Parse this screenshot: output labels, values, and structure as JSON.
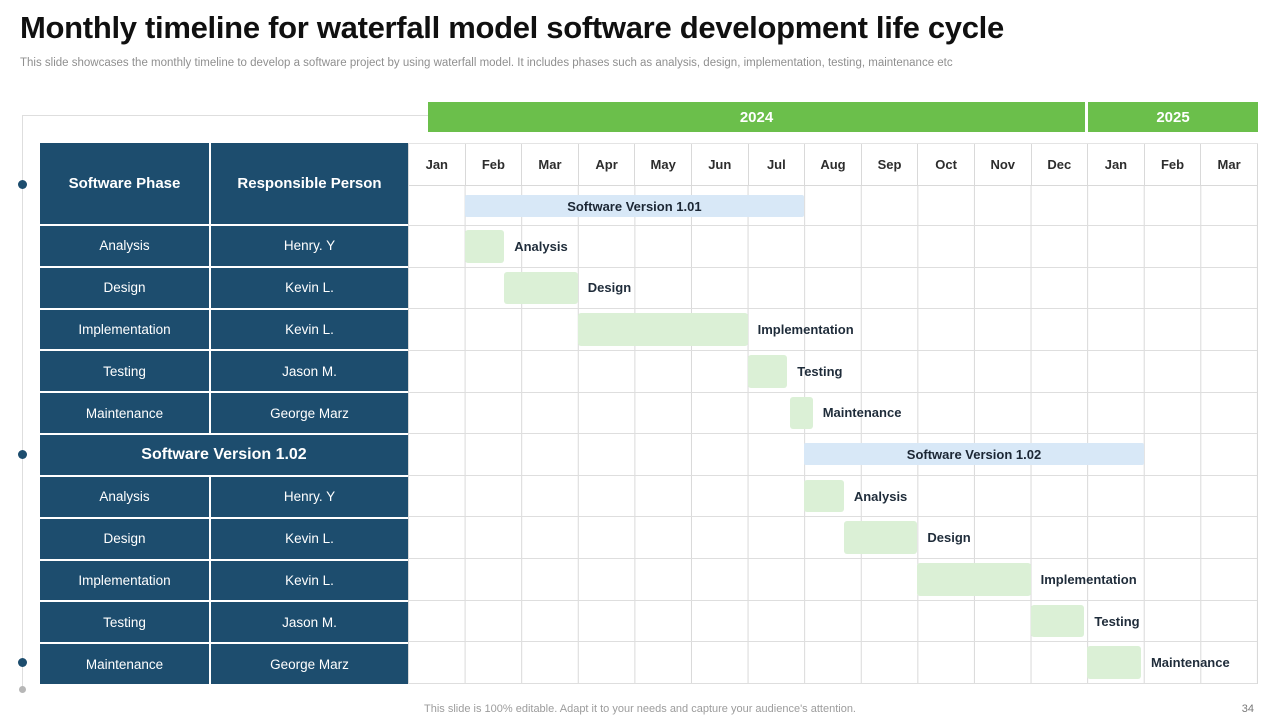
{
  "slide": {
    "title": "Monthly timeline for waterfall model software development life cycle",
    "subtitle": "This slide showcases the monthly timeline to develop a software project by using waterfall model. It includes phases such as analysis, design, implementation, testing, maintenance etc",
    "footer_note": "This slide is 100% editable. Adapt it to your needs and capture your audience's attention.",
    "page_number": "34"
  },
  "colors": {
    "table_blue": "#1d4d6e",
    "year_green": "#6bbf4b",
    "task_bar_green": "#dbf0d6",
    "version_bar_blue": "#d8e8f7",
    "grid_gray": "#d9d9d9"
  },
  "table": {
    "col_headers": [
      "Software Phase",
      "Responsible Person"
    ],
    "section2_header": "Software Version 1.02",
    "rows_v1": [
      {
        "phase": "Analysis",
        "person": "Henry. Y"
      },
      {
        "phase": "Design",
        "person": "Kevin L."
      },
      {
        "phase": "Implementation",
        "person": "Kevin L."
      },
      {
        "phase": "Testing",
        "person": "Jason M."
      },
      {
        "phase": "Maintenance",
        "person": "George Marz"
      }
    ],
    "rows_v2": [
      {
        "phase": "Analysis",
        "person": "Henry. Y"
      },
      {
        "phase": "Design",
        "person": "Kevin L."
      },
      {
        "phase": "Implementation",
        "person": "Kevin L."
      },
      {
        "phase": "Testing",
        "person": "Jason M."
      },
      {
        "phase": "Maintenance",
        "person": "George Marz"
      }
    ]
  },
  "chart_data": {
    "type": "gantt",
    "unit": "month",
    "columns_total": 15,
    "timeline": {
      "years": [
        {
          "label": "2024",
          "start": 0,
          "span": 12
        },
        {
          "label": "2025",
          "start": 12,
          "span": 3
        }
      ],
      "months": [
        "Jan",
        "Feb",
        "Mar",
        "Apr",
        "May",
        "Jun",
        "Jul",
        "Aug",
        "Sep",
        "Oct",
        "Nov",
        "Dec",
        "Jan",
        "Feb",
        "Mar"
      ]
    },
    "phases": [
      {
        "kind": "version",
        "label": "Software Version 1.01",
        "start": 1,
        "span": 6
      },
      {
        "kind": "task",
        "label": "Analysis",
        "start": 1,
        "span": 0.7
      },
      {
        "kind": "task",
        "label": "Design",
        "start": 1.7,
        "span": 1.3
      },
      {
        "kind": "task",
        "label": "Implementation",
        "start": 3,
        "span": 3
      },
      {
        "kind": "task",
        "label": "Testing",
        "start": 6,
        "span": 0.7
      },
      {
        "kind": "task",
        "label": "Maintenance",
        "start": 6.75,
        "span": 0.4
      },
      {
        "kind": "version",
        "label": "Software Version 1.02",
        "start": 7,
        "span": 6
      },
      {
        "kind": "task",
        "label": "Analysis",
        "start": 7,
        "span": 0.7
      },
      {
        "kind": "task",
        "label": "Design",
        "start": 7.7,
        "span": 1.3
      },
      {
        "kind": "task",
        "label": "Implementation",
        "start": 9,
        "span": 2
      },
      {
        "kind": "task",
        "label": "Testing",
        "start": 11,
        "span": 0.95
      },
      {
        "kind": "task",
        "label": "Maintenance",
        "start": 12,
        "span": 0.95
      }
    ]
  }
}
